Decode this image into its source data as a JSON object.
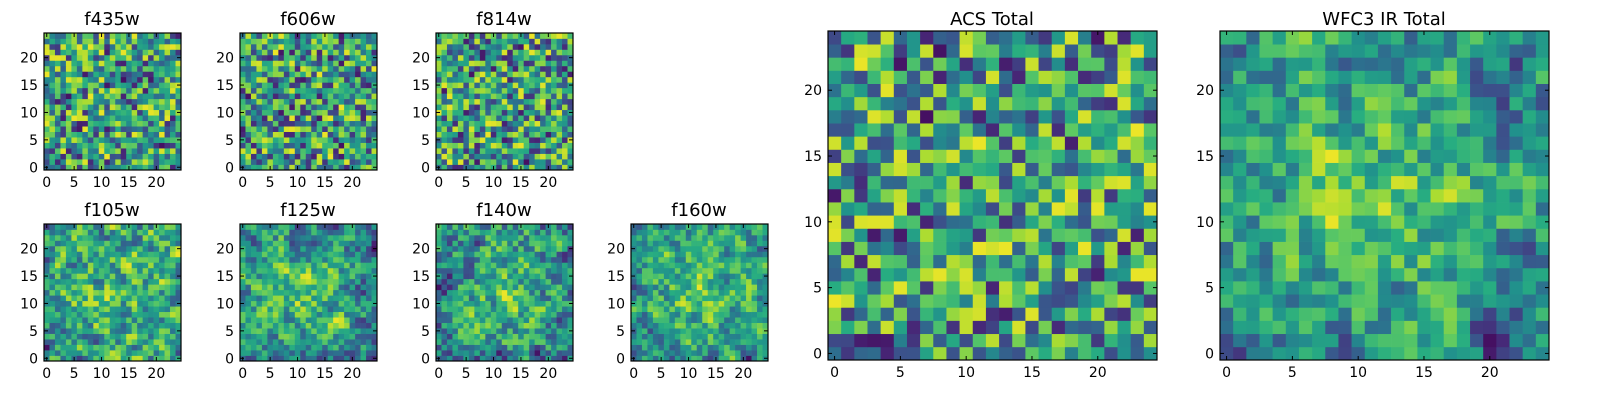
{
  "chart_data": [
    {
      "type": "heatmap",
      "title": "f435w",
      "colormap": "viridis",
      "grid": "25x25",
      "xlim": [
        0,
        24
      ],
      "ylim": [
        0,
        24
      ],
      "xticks": [
        0,
        5,
        10,
        15,
        20
      ],
      "yticks": [
        0,
        5,
        10,
        15,
        20
      ],
      "xlabel": "",
      "ylabel": "",
      "seed": 11,
      "smooth": 0,
      "center_boost": 0.0
    },
    {
      "type": "heatmap",
      "title": "f606w",
      "colormap": "viridis",
      "grid": "25x25",
      "xlim": [
        0,
        24
      ],
      "ylim": [
        0,
        24
      ],
      "xticks": [
        0,
        5,
        10,
        15,
        20
      ],
      "yticks": [
        0,
        5,
        10,
        15,
        20
      ],
      "xlabel": "",
      "ylabel": "",
      "seed": 23,
      "smooth": 0,
      "center_boost": 0.0
    },
    {
      "type": "heatmap",
      "title": "f814w",
      "colormap": "viridis",
      "grid": "25x25",
      "xlim": [
        0,
        24
      ],
      "ylim": [
        0,
        24
      ],
      "xticks": [
        0,
        5,
        10,
        15,
        20
      ],
      "yticks": [
        0,
        5,
        10,
        15,
        20
      ],
      "xlabel": "",
      "ylabel": "",
      "seed": 37,
      "smooth": 0,
      "center_boost": 0.0
    },
    {
      "type": "heatmap",
      "title": "f105w",
      "colormap": "viridis",
      "grid": "25x25",
      "xlim": [
        0,
        24
      ],
      "ylim": [
        0,
        24
      ],
      "xticks": [
        0,
        5,
        10,
        15,
        20
      ],
      "yticks": [
        0,
        5,
        10,
        15,
        20
      ],
      "xlabel": "",
      "ylabel": "",
      "seed": 41,
      "smooth": 1,
      "center_boost": 0.15
    },
    {
      "type": "heatmap",
      "title": "f125w",
      "colormap": "viridis",
      "grid": "25x25",
      "xlim": [
        0,
        24
      ],
      "ylim": [
        0,
        24
      ],
      "xticks": [
        0,
        5,
        10,
        15,
        20
      ],
      "yticks": [
        0,
        5,
        10,
        15,
        20
      ],
      "xlabel": "",
      "ylabel": "",
      "seed": 53,
      "smooth": 1,
      "center_boost": 0.2
    },
    {
      "type": "heatmap",
      "title": "f140w",
      "colormap": "viridis",
      "grid": "25x25",
      "xlim": [
        0,
        24
      ],
      "ylim": [
        0,
        24
      ],
      "xticks": [
        0,
        5,
        10,
        15,
        20
      ],
      "yticks": [
        0,
        5,
        10,
        15,
        20
      ],
      "xlabel": "",
      "ylabel": "",
      "seed": 67,
      "smooth": 1,
      "center_boost": 0.2
    },
    {
      "type": "heatmap",
      "title": "f160w",
      "colormap": "viridis",
      "grid": "25x25",
      "xlim": [
        0,
        24
      ],
      "ylim": [
        0,
        24
      ],
      "xticks": [
        0,
        5,
        10,
        15,
        20
      ],
      "yticks": [
        0,
        5,
        10,
        15,
        20
      ],
      "xlabel": "",
      "ylabel": "",
      "seed": 79,
      "smooth": 1,
      "center_boost": 0.25
    },
    {
      "type": "heatmap",
      "title": "ACS Total",
      "colormap": "viridis",
      "grid": "25x25",
      "xlim": [
        0,
        24
      ],
      "ylim": [
        0,
        24
      ],
      "xticks": [
        0,
        5,
        10,
        15,
        20
      ],
      "yticks": [
        0,
        5,
        10,
        15,
        20
      ],
      "xlabel": "",
      "ylabel": "",
      "seed": 97,
      "smooth": 0,
      "center_boost": 0.0
    },
    {
      "type": "heatmap",
      "title": "WFC3 IR Total",
      "colormap": "viridis",
      "grid": "25x25",
      "xlim": [
        0,
        24
      ],
      "ylim": [
        0,
        24
      ],
      "xticks": [
        0,
        5,
        10,
        15,
        20
      ],
      "yticks": [
        0,
        5,
        10,
        15,
        20
      ],
      "xlabel": "",
      "ylabel": "",
      "seed": 131,
      "smooth": 1,
      "center_boost": 0.3
    }
  ]
}
